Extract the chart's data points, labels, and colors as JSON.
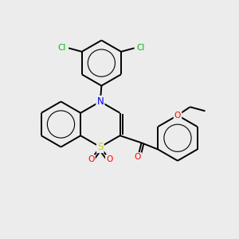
{
  "bg_color": "#ececec",
  "bond_color": "#000000",
  "bond_width": 1.4,
  "figsize": [
    3.0,
    3.0
  ],
  "dpi": 100,
  "xlim": [
    0,
    10
  ],
  "ylim": [
    0,
    10
  ],
  "atom_colors": {
    "S": "#cccc00",
    "N": "#0000ff",
    "O": "#ff0000",
    "Cl": "#00bb00",
    "C": "#000000"
  },
  "font_size": 8.5,
  "font_size_cl": 7.5
}
